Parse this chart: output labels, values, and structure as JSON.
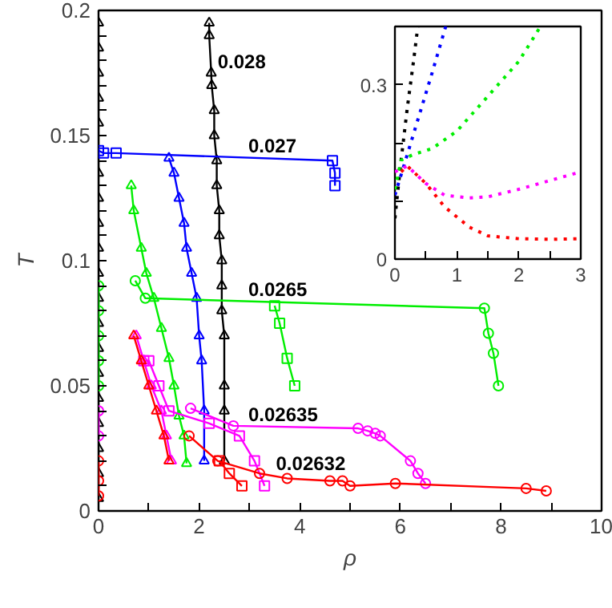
{
  "chart_data": [
    {
      "type": "line",
      "xlabel": "ρ",
      "ylabel": "T",
      "xlim": [
        0,
        10
      ],
      "ylim": [
        0,
        0.2
      ],
      "xticks": [
        0,
        {
          "value": 1,
          "label": null
        },
        2,
        {
          "value": 3,
          "label": null
        },
        4,
        {
          "value": 5,
          "label": null
        },
        6,
        {
          "value": 7,
          "label": null
        },
        8,
        {
          "value": 9,
          "label": null
        },
        10
      ],
      "yticks": [
        0,
        {
          "value": 0.01,
          "label": null
        },
        {
          "value": 0.02,
          "label": null
        },
        {
          "value": 0.03,
          "label": null
        },
        {
          "value": 0.04,
          "label": null
        },
        0.05,
        {
          "value": 0.06,
          "label": null
        },
        {
          "value": 0.07,
          "label": null
        },
        {
          "value": 0.08,
          "label": null
        },
        {
          "value": 0.09,
          "label": null
        },
        0.1,
        {
          "value": 0.11,
          "label": null
        },
        {
          "value": 0.12,
          "label": null
        },
        {
          "value": 0.13,
          "label": null
        },
        {
          "value": 0.14,
          "label": null
        },
        0.15,
        {
          "value": 0.16,
          "label": null
        },
        {
          "value": 0.17,
          "label": null
        },
        {
          "value": 0.18,
          "label": null
        },
        {
          "value": 0.19,
          "label": null
        },
        0.2
      ],
      "grid": false,
      "line_style": "solid",
      "annotations": [
        {
          "text": "0.028",
          "x": 2.24,
          "y": 0.175
        },
        {
          "text": "0.027",
          "x": 2.85,
          "y": 0.1413
        },
        {
          "text": "0.0265",
          "x": 2.85,
          "y": 0.0839
        },
        {
          "text": "0.02635",
          "x": 2.85,
          "y": 0.0339
        },
        {
          "text": "0.02632",
          "x": 3.4,
          "y": 0.0143
        }
      ],
      "series": [
        {
          "marker": "triangle",
          "color": "#000000",
          "x": [
            0,
            0,
            0,
            0,
            0,
            0,
            0,
            0,
            0,
            0,
            0,
            0,
            0,
            0,
            0,
            0,
            0,
            0,
            0
          ],
          "values": [
            0.195,
            0.185,
            0.175,
            0.165,
            0.155,
            0.135,
            0.125,
            0.115,
            0.105,
            0.095,
            0.085,
            0.075,
            0.065,
            0.055,
            0.045,
            0.035,
            0.025,
            0.015,
            0.005
          ]
        },
        {
          "marker": "triangle",
          "color": "#000000",
          "x": [
            2.2,
            2.2,
            2.24,
            2.25,
            2.3,
            2.3,
            2.35,
            2.35,
            2.4,
            2.4,
            2.45,
            2.45,
            2.45,
            2.5,
            2.5,
            2.5,
            2.5
          ],
          "values": [
            0.195,
            0.19,
            0.175,
            0.17,
            0.16,
            0.15,
            0.14,
            0.13,
            0.12,
            0.11,
            0.1,
            0.09,
            0.08,
            0.07,
            0.05,
            0.04,
            0.02
          ]
        },
        {
          "marker": "square",
          "color": "#0000ff",
          "x": [
            0,
            0.1,
            0.35,
            4.65,
            4.7,
            4.7
          ],
          "values": [
            0.144,
            0.143,
            0.143,
            0.14,
            0.135,
            0.13
          ]
        },
        {
          "marker": "triangle",
          "color": "#0000ff",
          "x": [
            1.4,
            1.5,
            1.6,
            1.7,
            1.75,
            1.85,
            1.95,
            2.0,
            2.05,
            2.1,
            2.1
          ],
          "values": [
            0.141,
            0.135,
            0.125,
            0.115,
            0.105,
            0.095,
            0.085,
            0.07,
            0.06,
            0.04,
            0.02
          ]
        },
        {
          "marker": "circle",
          "color": "#00ee00",
          "x": [
            0,
            0,
            0,
            0,
            0
          ],
          "values": [
            0.09,
            0.08,
            0.07,
            0.06,
            0.05
          ]
        },
        {
          "marker": "circle",
          "color": "#00ee00",
          "x": [
            0.73,
            0.93,
            7.67,
            7.75,
            7.85,
            7.95
          ],
          "values": [
            0.092,
            0.085,
            0.081,
            0.071,
            0.063,
            0.05
          ]
        },
        {
          "marker": "triangle",
          "color": "#00ee00",
          "x": [
            0.65,
            0.7,
            0.85,
            0.95,
            1.1,
            1.25,
            1.4,
            1.5,
            1.6,
            1.7,
            1.75
          ],
          "values": [
            0.13,
            0.12,
            0.105,
            0.095,
            0.085,
            0.073,
            0.061,
            0.05,
            0.038,
            0.03,
            0.019
          ]
        },
        {
          "marker": "square",
          "color": "#00ee00",
          "x": [
            3.5,
            3.6,
            3.75,
            3.9
          ],
          "values": [
            0.082,
            0.075,
            0.061,
            0.05
          ]
        },
        {
          "marker": "circle",
          "color": "#ff00ff",
          "x": [
            0,
            0
          ],
          "values": [
            0.04,
            0.03
          ]
        },
        {
          "marker": "circle",
          "color": "#ff00ff",
          "x": [
            1.83,
            2.68,
            5.16,
            5.35,
            5.5,
            5.6,
            6.2,
            6.35,
            6.5
          ],
          "values": [
            0.041,
            0.034,
            0.033,
            0.032,
            0.031,
            0.03,
            0.02,
            0.015,
            0.011
          ]
        },
        {
          "marker": "square",
          "color": "#ff00ff",
          "x": [
            0.9,
            1.0,
            1.2,
            1.4,
            2.2,
            2.8,
            3.1,
            3.3
          ],
          "values": [
            0.06,
            0.06,
            0.05,
            0.04,
            0.035,
            0.03,
            0.02,
            0.01
          ]
        },
        {
          "marker": "triangle",
          "color": "#ff00ff",
          "x": [
            0.75,
            0.9,
            1.05,
            1.25,
            1.35,
            1.45
          ],
          "values": [
            0.07,
            0.06,
            0.05,
            0.04,
            0.03,
            0.02
          ]
        },
        {
          "marker": "triangle",
          "color": "#ff0000",
          "x": [
            0.7,
            0.85,
            1.0,
            1.15,
            1.3,
            1.4
          ],
          "values": [
            0.07,
            0.06,
            0.05,
            0.04,
            0.03,
            0.02
          ]
        },
        {
          "marker": "circle",
          "color": "#ff0000",
          "x": [
            0,
            0,
            0
          ],
          "values": [
            0.02,
            0.012,
            0.006
          ]
        },
        {
          "marker": "circle",
          "color": "#ff0000",
          "x": [
            1.8,
            2.37,
            3.2,
            3.75,
            4.6,
            4.85,
            5.0,
            5.9,
            8.5,
            8.9
          ],
          "values": [
            0.03,
            0.02,
            0.015,
            0.013,
            0.012,
            0.012,
            0.01,
            0.011,
            0.009,
            0.008
          ]
        },
        {
          "marker": "square",
          "color": "#ff0000",
          "x": [
            2.4,
            2.6,
            2.85
          ],
          "values": [
            0.02,
            0.015,
            0.01
          ]
        }
      ]
    },
    {
      "type": "line",
      "xlim": [
        0,
        3
      ],
      "ylim": [
        0,
        0.4
      ],
      "xticks": [
        0,
        {
          "value": 0.5,
          "label": null
        },
        1,
        {
          "value": 1.5,
          "label": null
        },
        2,
        {
          "value": 2.5,
          "label": null
        },
        3
      ],
      "yticks": [
        0,
        {
          "value": 0.1,
          "label": null
        },
        {
          "value": 0.2,
          "label": null
        },
        0.3
      ],
      "grid": false,
      "line_style": "dotted",
      "series": [
        {
          "color": "#000000",
          "x": [
            0,
            0.1,
            0.2,
            0.3,
            0.37
          ],
          "values": [
            0.07,
            0.17,
            0.26,
            0.34,
            0.4
          ]
        },
        {
          "color": "#0000ff",
          "x": [
            0,
            0.2,
            0.4,
            0.6,
            0.82
          ],
          "values": [
            0.11,
            0.18,
            0.25,
            0.32,
            0.4
          ]
        },
        {
          "color": "#00ee00",
          "x": [
            0,
            0.1,
            0.3,
            0.6,
            1.0,
            1.5,
            2.0,
            2.35
          ],
          "values": [
            0.12,
            0.17,
            0.18,
            0.19,
            0.22,
            0.28,
            0.34,
            0.4
          ]
        },
        {
          "color": "#ff00ff",
          "x": [
            0,
            0.2,
            0.5,
            0.8,
            1.2,
            1.5,
            2.0,
            2.5,
            3.0
          ],
          "values": [
            0.15,
            0.16,
            0.13,
            0.11,
            0.105,
            0.107,
            0.12,
            0.135,
            0.15
          ]
        },
        {
          "color": "#ff0000",
          "x": [
            0.1,
            0.2,
            0.5,
            0.8,
            1.2,
            1.5,
            2.0,
            2.5,
            3.0
          ],
          "values": [
            0.15,
            0.16,
            0.13,
            0.09,
            0.055,
            0.04,
            0.035,
            0.034,
            0.035
          ]
        }
      ]
    }
  ]
}
